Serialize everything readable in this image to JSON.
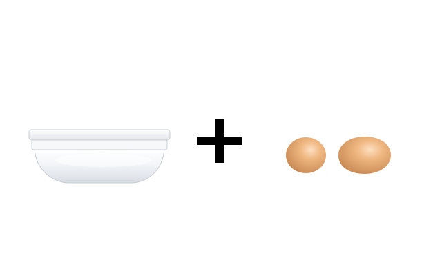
{
  "scene": {
    "background": "#ffffff",
    "items": [
      {
        "name": "bowl",
        "icon": "bowl-icon",
        "color": "#f2f4f7"
      },
      {
        "name": "plus",
        "icon": "plus-icon",
        "color": "#000000"
      },
      {
        "name": "eggs",
        "icon": "egg-icon",
        "count": 2,
        "color": "#e6a26a"
      }
    ]
  }
}
